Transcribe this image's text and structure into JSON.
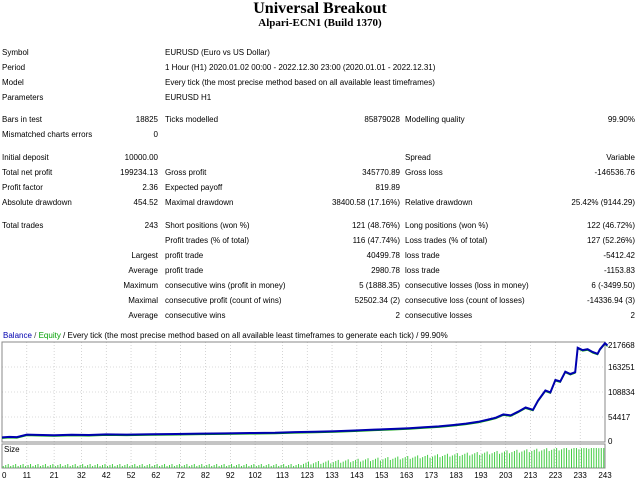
{
  "header": {
    "title": "Universal Breakout",
    "subtitle": "Alpari-ECN1 (Build 1370)"
  },
  "info": {
    "symbol_label": "Symbol",
    "symbol_value": "EURUSD (Euro vs US Dollar)",
    "period_label": "Period",
    "period_value": "1 Hour (H1) 2020.01.02 00:00 - 2022.12.30 23:00 (2020.01.01 - 2022.12.31)",
    "model_label": "Model",
    "model_value": "Every tick (the most precise method based on all available least timeframes)",
    "parameters_label": "Parameters",
    "parameters_value": "EURUSD H1"
  },
  "test": {
    "bars_label": "Bars in test",
    "bars_value": "18825",
    "ticks_label": "Ticks modelled",
    "ticks_value": "85879028",
    "quality_label": "Modelling quality",
    "quality_value": "99.90%",
    "mismatch_label": "Mismatched charts errors",
    "mismatch_value": "0"
  },
  "results": {
    "deposit_label": "Initial deposit",
    "deposit_value": "10000.00",
    "spread_label": "Spread",
    "spread_value": "Variable",
    "netprofit_label": "Total net profit",
    "netprofit_value": "199234.13",
    "grossprofit_label": "Gross profit",
    "grossprofit_value": "345770.89",
    "grossloss_label": "Gross loss",
    "grossloss_value": "-146536.76",
    "pf_label": "Profit factor",
    "pf_value": "2.36",
    "payoff_label": "Expected payoff",
    "payoff_value": "819.89",
    "absdd_label": "Absolute drawdown",
    "absdd_value": "454.52",
    "maxdd_label": "Maximal drawdown",
    "maxdd_value": "38400.58 (17.16%)",
    "reldd_label": "Relative drawdown",
    "reldd_value": "25.42% (9144.29)"
  },
  "trades": {
    "total_label": "Total trades",
    "total_value": "243",
    "short_label": "Short positions (won %)",
    "short_value": "121 (48.76%)",
    "long_label": "Long positions (won %)",
    "long_value": "122 (46.72%)",
    "profit_trades_label": "Profit trades (% of total)",
    "profit_trades_value": "116 (47.74%)",
    "loss_trades_label": "Loss trades (% of total)",
    "loss_trades_value": "127 (52.26%)",
    "largest_label": "Largest",
    "largest_profit_label": "profit trade",
    "largest_profit_value": "40499.78",
    "largest_loss_label": "loss trade",
    "largest_loss_value": "-5412.42",
    "average_label": "Average",
    "average_profit_label": "profit trade",
    "average_profit_value": "2980.78",
    "average_loss_label": "loss trade",
    "average_loss_value": "-1153.83",
    "maximum_label": "Maximum",
    "max_wins_label": "consecutive wins (profit in money)",
    "max_wins_value": "5 (1888.35)",
    "max_losses_label": "consecutive losses (loss in money)",
    "max_losses_value": "6 (-3499.50)",
    "maximal_label": "Maximal",
    "maximal_profit_label": "consecutive profit (count of wins)",
    "maximal_profit_value": "52502.34 (2)",
    "maximal_loss_label": "consecutive loss (count of losses)",
    "maximal_loss_value": "-14336.94 (3)",
    "avg2_label": "Average",
    "avg_wins_label": "consecutive wins",
    "avg_wins_value": "2",
    "avg_losses_label": "consecutive losses",
    "avg_losses_value": "2"
  },
  "chart_data": {
    "type": "line",
    "legend": {
      "balance": "Balance",
      "sep1": " / ",
      "equity": "Equity",
      "sep2": " / ",
      "description": "Every tick (the most precise method based on all available least timeframes to generate each tick) / 99.90%"
    },
    "colors": {
      "balance": "#0000b0",
      "equity": "#00a000",
      "size": "#44cc44",
      "grid": "#b8b8b8"
    },
    "ylim": [
      0,
      217668
    ],
    "y_ticks": [
      "217668",
      "163251",
      "108834",
      "54417",
      "0"
    ],
    "x": [
      0,
      10,
      21,
      32,
      42,
      52,
      62,
      72,
      82,
      92,
      102,
      113,
      123,
      133,
      143,
      153,
      163,
      173,
      183,
      193,
      203,
      213,
      223,
      233,
      243
    ],
    "balance": [
      [
        0,
        10000
      ],
      [
        3,
        11000
      ],
      [
        6,
        10600
      ],
      [
        10,
        16000
      ],
      [
        14,
        15500
      ],
      [
        21,
        14800
      ],
      [
        28,
        15800
      ],
      [
        35,
        15200
      ],
      [
        42,
        16600
      ],
      [
        50,
        16000
      ],
      [
        60,
        16800
      ],
      [
        70,
        17500
      ],
      [
        80,
        18200
      ],
      [
        90,
        18800
      ],
      [
        100,
        19500
      ],
      [
        110,
        20000
      ],
      [
        118,
        21500
      ],
      [
        126,
        22500
      ],
      [
        134,
        23500
      ],
      [
        142,
        25000
      ],
      [
        150,
        27000
      ],
      [
        158,
        28500
      ],
      [
        164,
        30000
      ],
      [
        170,
        32000
      ],
      [
        176,
        34000
      ],
      [
        182,
        37000
      ],
      [
        187,
        40000
      ],
      [
        192,
        44000
      ],
      [
        196,
        49000
      ],
      [
        199,
        53000
      ],
      [
        202,
        60000
      ],
      [
        205,
        58000
      ],
      [
        208,
        66000
      ],
      [
        211,
        75000
      ],
      [
        214,
        70000
      ],
      [
        216,
        90000
      ],
      [
        219,
        112000
      ],
      [
        221,
        108000
      ],
      [
        223,
        135000
      ],
      [
        225,
        132000
      ],
      [
        227,
        153000
      ],
      [
        229,
        148000
      ],
      [
        231,
        152000
      ],
      [
        232,
        205000
      ],
      [
        234,
        200000
      ],
      [
        236,
        202000
      ],
      [
        238,
        196000
      ],
      [
        240,
        192000
      ],
      [
        241,
        202000
      ],
      [
        243,
        215000
      ],
      [
        244,
        210000
      ]
    ],
    "size_label": "Size",
    "size_x_ticks": [
      "0",
      "11",
      "21",
      "32",
      "42",
      "52",
      "62",
      "72",
      "82",
      "92",
      "102",
      "113",
      "123",
      "133",
      "143",
      "153",
      "163",
      "173",
      "183",
      "193",
      "203",
      "213",
      "223",
      "233",
      "243"
    ]
  }
}
